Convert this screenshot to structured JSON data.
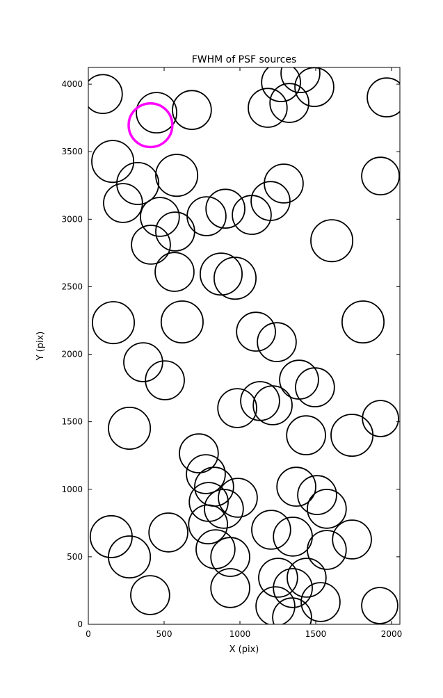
{
  "chart_data": {
    "type": "scatter",
    "title": "FWHM of PSF sources",
    "xlabel": "X (pix)",
    "ylabel": "Y (pix)",
    "xlim": [
      0,
      2055
    ],
    "ylim": [
      0,
      4124
    ],
    "xticks": [
      0,
      500,
      1000,
      1500,
      2000
    ],
    "yticks": [
      0,
      500,
      1000,
      1500,
      2000,
      2500,
      3000,
      3500,
      4000
    ],
    "grid": false,
    "legend": null,
    "marker_style": "open-circle",
    "circle_color": "#000000",
    "highlight_color": "#ff00ff",
    "circles": [
      [
        96,
        3927,
        128
      ],
      [
        450,
        3789,
        133
      ],
      [
        683,
        3809,
        128
      ],
      [
        1271,
        4015,
        128
      ],
      [
        1399,
        4082,
        128
      ],
      [
        1491,
        3979,
        128
      ],
      [
        1326,
        3861,
        128
      ],
      [
        1183,
        3825,
        128
      ],
      [
        1968,
        3902,
        128
      ],
      [
        161,
        3428,
        138
      ],
      [
        326,
        3264,
        138
      ],
      [
        583,
        3325,
        138
      ],
      [
        1927,
        3320,
        124
      ],
      [
        1289,
        3264,
        128
      ],
      [
        229,
        3120,
        128
      ],
      [
        472,
        3017,
        128
      ],
      [
        573,
        2909,
        128
      ],
      [
        413,
        2811,
        128
      ],
      [
        780,
        3022,
        128
      ],
      [
        904,
        3078,
        128
      ],
      [
        1078,
        3032,
        128
      ],
      [
        1202,
        3135,
        128
      ],
      [
        1606,
        2841,
        138
      ],
      [
        569,
        2610,
        128
      ],
      [
        876,
        2594,
        138
      ],
      [
        968,
        2563,
        138
      ],
      [
        165,
        2234,
        138
      ],
      [
        619,
        2239,
        138
      ],
      [
        1812,
        2239,
        138
      ],
      [
        1106,
        2167,
        128
      ],
      [
        1243,
        2090,
        128
      ],
      [
        362,
        1941,
        128
      ],
      [
        505,
        1807,
        128
      ],
      [
        1390,
        1812,
        128
      ],
      [
        1495,
        1755,
        128
      ],
      [
        271,
        1452,
        138
      ],
      [
        982,
        1601,
        128
      ],
      [
        1133,
        1653,
        128
      ],
      [
        1216,
        1622,
        128
      ],
      [
        1436,
        1400,
        128
      ],
      [
        1739,
        1400,
        138
      ],
      [
        1927,
        1524,
        119
      ],
      [
        729,
        1266,
        128
      ],
      [
        775,
        1112,
        128
      ],
      [
        830,
        1019,
        128
      ],
      [
        794,
        906,
        128
      ],
      [
        894,
        855,
        128
      ],
      [
        986,
        937,
        128
      ],
      [
        1372,
        1019,
        128
      ],
      [
        1509,
        957,
        128
      ],
      [
        1573,
        855,
        128
      ],
      [
        151,
        649,
        138
      ],
      [
        271,
        499,
        138
      ],
      [
        528,
        680,
        128
      ],
      [
        790,
        740,
        128
      ],
      [
        839,
        556,
        128
      ],
      [
        936,
        499,
        128
      ],
      [
        1206,
        700,
        128
      ],
      [
        1349,
        649,
        128
      ],
      [
        1252,
        345,
        128
      ],
      [
        1349,
        268,
        128
      ],
      [
        1440,
        345,
        128
      ],
      [
        1573,
        551,
        128
      ],
      [
        1739,
        628,
        128
      ],
      [
        408,
        216,
        128
      ],
      [
        936,
        268,
        128
      ],
      [
        1234,
        134,
        128
      ],
      [
        1532,
        165,
        128
      ],
      [
        1922,
        139,
        119
      ],
      [
        1344,
        51,
        128
      ]
    ],
    "highlight_circle": [
      410,
      3696,
      144
    ]
  }
}
